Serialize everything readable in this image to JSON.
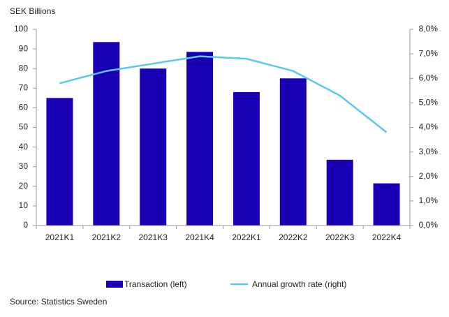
{
  "chart_data": {
    "type": "bar-line",
    "y_label": "SEK Billions",
    "source": "Source: Statistics Sweden",
    "categories": [
      "2021K1",
      "2021K2",
      "2021K3",
      "2021K4",
      "2022K1",
      "2022K2",
      "2022K3",
      "2022K4"
    ],
    "series": [
      {
        "name": "Transaction (left)",
        "type": "bar",
        "color": "#1a00b4",
        "values": [
          65,
          93.5,
          80,
          88.5,
          68,
          75,
          33.5,
          21.5
        ]
      },
      {
        "name": "Annual growth rate (right)",
        "type": "line",
        "axis": "y2",
        "color": "#5bc8f0",
        "values": [
          5.8,
          6.3,
          6.6,
          6.9,
          6.8,
          6.3,
          5.3,
          3.8
        ]
      }
    ],
    "ylim": [
      0,
      100
    ],
    "yticks": [
      0,
      10,
      20,
      30,
      40,
      50,
      60,
      70,
      80,
      90,
      100
    ],
    "y2lim": [
      0,
      8
    ],
    "y2ticks": [
      {
        "value": 0,
        "label": "0,0%"
      },
      {
        "value": 1,
        "label": "1,0%"
      },
      {
        "value": 2,
        "label": "2,0%"
      },
      {
        "value": 3,
        "label": "3,0%"
      },
      {
        "value": 4,
        "label": "4,0%"
      },
      {
        "value": 5,
        "label": "5,0%"
      },
      {
        "value": 6,
        "label": "6,0%"
      },
      {
        "value": 7,
        "label": "7,0%"
      },
      {
        "value": 8,
        "label": "8,0%"
      }
    ],
    "legend": "bottom"
  }
}
